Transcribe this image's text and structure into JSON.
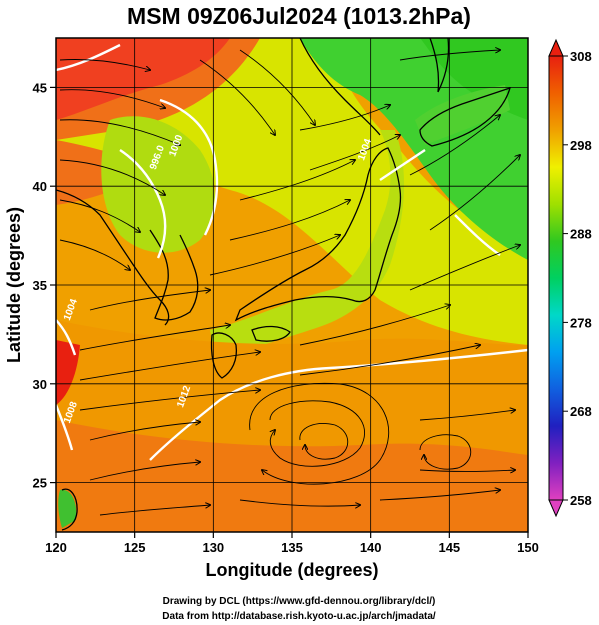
{
  "chart_data": {
    "type": "heatmap",
    "title": "MSM 09Z06Jul2024 (1013.2hPa)",
    "xlabel": "Longitude (degrees)",
    "ylabel": "Latitude  (degrees)",
    "xlim": [
      120,
      150
    ],
    "ylim": [
      22.5,
      47.5
    ],
    "x_ticks": [
      "120",
      "125",
      "130",
      "135",
      "140",
      "145",
      "150"
    ],
    "y_ticks": [
      "25",
      "30",
      "35",
      "40",
      "45"
    ],
    "grid": true,
    "colorbar": {
      "min": 258,
      "max": 308,
      "ticks": [
        "258",
        "268",
        "278",
        "288",
        "298",
        "308"
      ],
      "colors": [
        "#e040c0",
        "#8020c0",
        "#2020c0",
        "#1060e0",
        "#00a0f0",
        "#00d8c8",
        "#00d060",
        "#30c820",
        "#a0e000",
        "#f0f000",
        "#f0a000",
        "#f06000",
        "#e82010"
      ]
    },
    "isobar_labels": [
      {
        "text": "996.0",
        "lon": 126.6,
        "lat": 41.4
      },
      {
        "text": "1000",
        "lon": 127.8,
        "lat": 42.0
      },
      {
        "text": "1004",
        "lon": 121.1,
        "lat": 33.7
      },
      {
        "text": "1008",
        "lon": 121.1,
        "lat": 28.5
      },
      {
        "text": "1012",
        "lon": 128.3,
        "lat": 29.3
      },
      {
        "text": "1004",
        "lon": 139.8,
        "lat": 41.8
      }
    ]
  },
  "credits": {
    "line1": "Drawing by DCL (https://www.gfd-dennou.org/library/dcl/)",
    "line2": "Data from http://database.rish.kyoto-u.ac.jp/arch/jmadata/"
  }
}
